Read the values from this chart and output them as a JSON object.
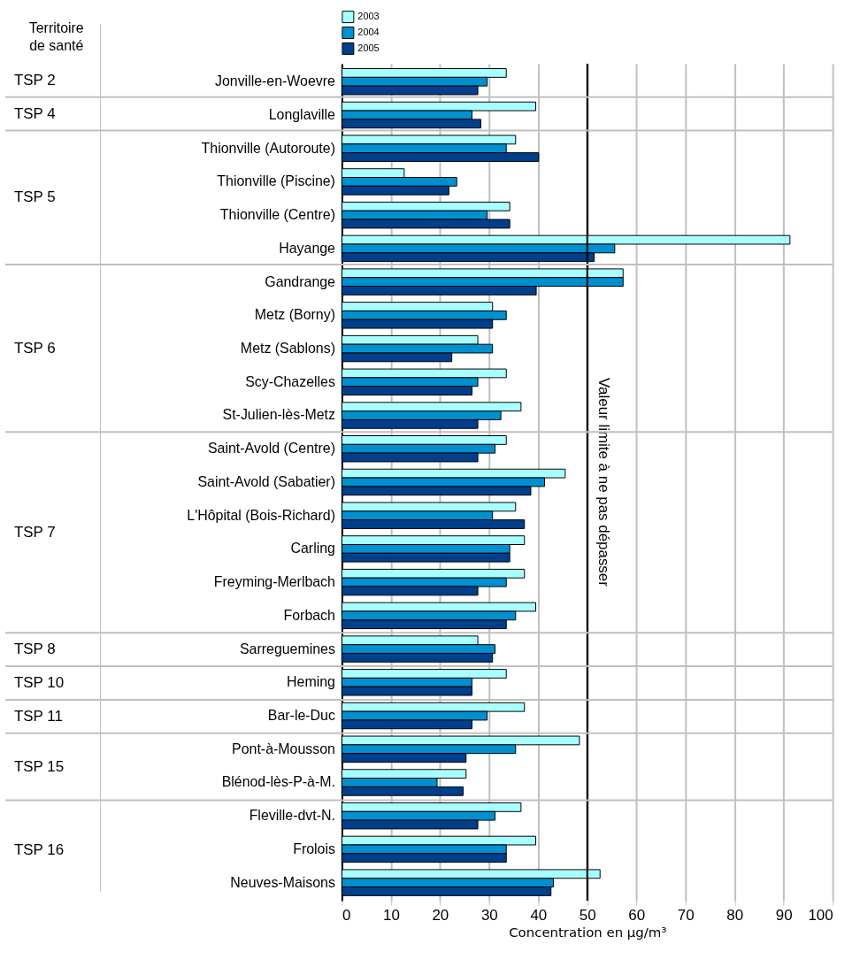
{
  "chart_data": {
    "type": "bar",
    "orientation": "horizontal",
    "categories": [
      "Jonville-en-Woevre",
      "Longlaville",
      "Thionville (Autoroute)",
      "Thionville (Piscine)",
      "Thionville (Centre)",
      "Hayange",
      "Gandrange",
      "Metz (Borny)",
      "Metz (Sablons)",
      "Scy-Chazelles",
      "St-Julien-lès-Metz",
      "Saint-Avold (Centre)",
      "Saint-Avold (Sabatier)",
      "L'Hôpital (Bois-Richard)",
      "Carling",
      "Freyming-Merlbach",
      "Forbach",
      "Sarreguemines",
      "Heming",
      "Bar-le-Duc",
      "Pont-à-Mousson",
      "Blénod-lès-P-à-M.",
      "Fleville-dvt-N.",
      "Frolois",
      "Neuves-Maisons"
    ],
    "series": [
      {
        "name": "2003",
        "color": "#a8ffff",
        "values": [
          33.5,
          39.5,
          35.4,
          12.7,
          34.2,
          91.3,
          57.3,
          30.7,
          27.7,
          33.5,
          36.5,
          33.5,
          45.5,
          35.4,
          37.2,
          37.2,
          39.5,
          27.7,
          33.5,
          37.2,
          48.4,
          25.3,
          36.5,
          39.5,
          52.6
        ]
      },
      {
        "name": "2004",
        "color": "#0090d0",
        "values": [
          29.6,
          26.5,
          33.5,
          23.4,
          29.6,
          55.6,
          57.3,
          33.5,
          30.7,
          27.7,
          32.4,
          31.2,
          41.3,
          30.7,
          34.2,
          33.5,
          35.4,
          31.2,
          26.5,
          29.6,
          35.4,
          19.4,
          31.2,
          33.5,
          43.1
        ]
      },
      {
        "name": "2005",
        "color": "#003f8c",
        "values": [
          27.7,
          28.3,
          40.1,
          21.8,
          34.2,
          51.4,
          39.6,
          30.7,
          22.4,
          26.5,
          27.7,
          27.7,
          38.5,
          37.2,
          34.2,
          27.7,
          33.5,
          30.7,
          26.5,
          26.5,
          25.3,
          24.7,
          27.7,
          33.5,
          42.6
        ]
      }
    ],
    "xlim": [
      0,
      100
    ],
    "xticks": [
      0,
      10,
      20,
      30,
      40,
      50,
      60,
      70,
      80,
      90,
      100
    ],
    "xlabel": "Concentration en µg/m³",
    "grid": "x",
    "legend": "top",
    "ref_lines": [
      {
        "axis": "x",
        "value": 50,
        "label": "Valeur limite à ne pas dépasser",
        "color": "#000000"
      }
    ],
    "annotations": [
      "Territoire de santé",
      "TSP 2",
      "TSP 4",
      "TSP 5",
      "TSP 6",
      "TSP 7",
      "TSP 8",
      "TSP 10",
      "TSP 11",
      "TSP 15",
      "TSP 16"
    ]
  }
}
